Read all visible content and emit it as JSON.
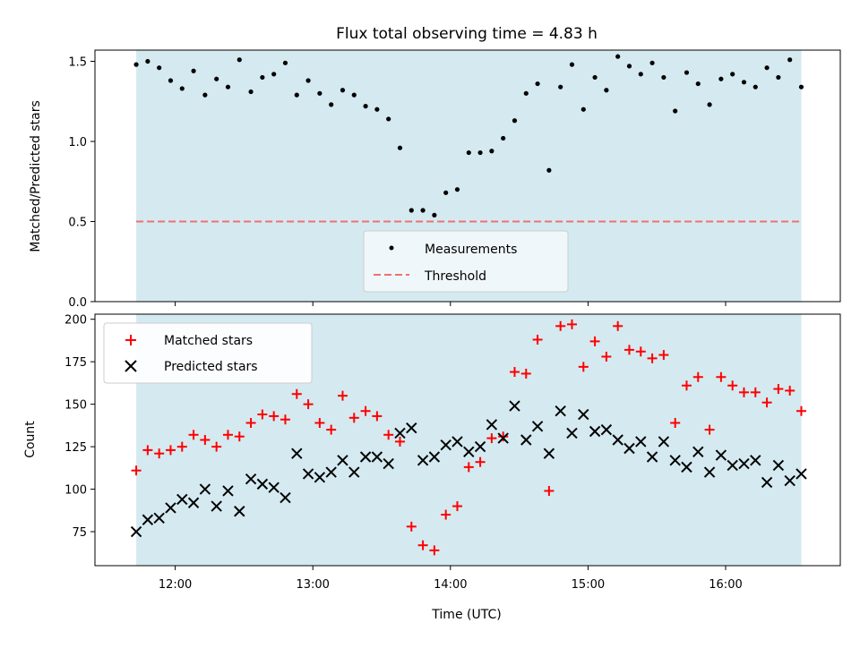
{
  "chart_data": [
    {
      "type": "scatter",
      "title": "Flux total observing time = 4.83 h",
      "xlabel": "",
      "ylabel": "Matched/Predicted stars",
      "ylim": [
        0,
        1.57
      ],
      "xlim": [
        "11:25",
        "16:50"
      ],
      "shaded_region": {
        "from": "11:43",
        "to": "16:33",
        "color": "#d4eaf0"
      },
      "yticks": [
        "0.0",
        "0.5",
        "1.0",
        "1.5"
      ],
      "legend": {
        "placement": "lower center",
        "entries": [
          "Measurements",
          "Threshold"
        ]
      },
      "series": [
        {
          "name": "Measurements",
          "color": "#000000",
          "x": [
            "11:43",
            "11:48",
            "11:53",
            "11:58",
            "12:03",
            "12:08",
            "12:13",
            "12:18",
            "12:23",
            "12:28",
            "12:33",
            "12:38",
            "12:43",
            "12:48",
            "12:53",
            "12:58",
            "13:03",
            "13:08",
            "13:13",
            "13:18",
            "13:23",
            "13:28",
            "13:33",
            "13:38",
            "13:43",
            "13:48",
            "13:53",
            "13:58",
            "14:03",
            "14:08",
            "14:13",
            "14:18",
            "14:23",
            "14:28",
            "14:33",
            "14:38",
            "14:43",
            "14:48",
            "14:53",
            "14:58",
            "15:03",
            "15:08",
            "15:13",
            "15:18",
            "15:23",
            "15:28",
            "15:33",
            "15:38",
            "15:43",
            "15:48",
            "15:53",
            "15:58",
            "16:03",
            "16:08",
            "16:13",
            "16:18",
            "16:23",
            "16:28",
            "16:33"
          ],
          "y": [
            1.48,
            1.5,
            1.46,
            1.38,
            1.33,
            1.44,
            1.29,
            1.39,
            1.34,
            1.51,
            1.31,
            1.4,
            1.42,
            1.49,
            1.29,
            1.38,
            1.3,
            1.23,
            1.32,
            1.29,
            1.22,
            1.2,
            1.14,
            0.96,
            0.57,
            0.57,
            0.54,
            0.68,
            0.7,
            0.93,
            0.93,
            0.94,
            1.02,
            1.13,
            1.3,
            1.36,
            0.82,
            1.34,
            1.48,
            1.2,
            1.4,
            1.32,
            1.53,
            1.47,
            1.42,
            1.49,
            1.4,
            1.19,
            1.43,
            1.36,
            1.23,
            1.39,
            1.42,
            1.37,
            1.34,
            1.46,
            1.4,
            1.51,
            1.34
          ]
        },
        {
          "name": "Threshold",
          "type": "line",
          "style": "dashed",
          "color": "#f07070",
          "x": [
            "11:43",
            "16:33"
          ],
          "y": [
            0.5,
            0.5
          ]
        }
      ]
    },
    {
      "type": "scatter",
      "title": "",
      "xlabel": "Time (UTC)",
      "ylabel": "Count",
      "ylim": [
        55,
        203
      ],
      "xlim": [
        "11:25",
        "16:50"
      ],
      "xticks": [
        "12:00",
        "13:00",
        "14:00",
        "15:00",
        "16:00"
      ],
      "yticks": [
        "75",
        "100",
        "125",
        "150",
        "175",
        "200"
      ],
      "shaded_region": {
        "from": "11:43",
        "to": "16:33",
        "color": "#d4eaf0"
      },
      "legend": {
        "placement": "upper left",
        "entries": [
          "Matched stars",
          "Predicted stars"
        ]
      },
      "series": [
        {
          "name": "Matched stars",
          "marker": "+",
          "color": "#ff0000",
          "x": [
            "11:43",
            "11:48",
            "11:53",
            "11:58",
            "12:03",
            "12:08",
            "12:13",
            "12:18",
            "12:23",
            "12:28",
            "12:33",
            "12:38",
            "12:43",
            "12:48",
            "12:53",
            "12:58",
            "13:03",
            "13:08",
            "13:13",
            "13:18",
            "13:23",
            "13:28",
            "13:33",
            "13:38",
            "13:43",
            "13:48",
            "13:53",
            "13:58",
            "14:03",
            "14:08",
            "14:13",
            "14:18",
            "14:23",
            "14:28",
            "14:33",
            "14:38",
            "14:43",
            "14:48",
            "14:53",
            "14:58",
            "15:03",
            "15:08",
            "15:13",
            "15:18",
            "15:23",
            "15:28",
            "15:33",
            "15:38",
            "15:43",
            "15:48",
            "15:53",
            "15:58",
            "16:03",
            "16:08",
            "16:13",
            "16:18",
            "16:23",
            "16:28",
            "16:33"
          ],
          "y": [
            111,
            123,
            121,
            123,
            125,
            132,
            129,
            125,
            132,
            131,
            139,
            144,
            143,
            141,
            156,
            150,
            139,
            135,
            155,
            142,
            146,
            143,
            132,
            128,
            78,
            67,
            64,
            85,
            90,
            113,
            116,
            130,
            131,
            169,
            168,
            188,
            99,
            196,
            197,
            172,
            187,
            178,
            196,
            182,
            181,
            177,
            179,
            139,
            161,
            166,
            135,
            166,
            161,
            157,
            157,
            151,
            159,
            158,
            146
          ]
        },
        {
          "name": "Predicted stars",
          "marker": "x",
          "color": "#000000",
          "x": [
            "11:43",
            "11:48",
            "11:53",
            "11:58",
            "12:03",
            "12:08",
            "12:13",
            "12:18",
            "12:23",
            "12:28",
            "12:33",
            "12:38",
            "12:43",
            "12:48",
            "12:53",
            "12:58",
            "13:03",
            "13:08",
            "13:13",
            "13:18",
            "13:23",
            "13:28",
            "13:33",
            "13:38",
            "13:43",
            "13:48",
            "13:53",
            "13:58",
            "14:03",
            "14:08",
            "14:13",
            "14:18",
            "14:23",
            "14:28",
            "14:33",
            "14:38",
            "14:43",
            "14:48",
            "14:53",
            "14:58",
            "15:03",
            "15:08",
            "15:13",
            "15:18",
            "15:23",
            "15:28",
            "15:33",
            "15:38",
            "15:43",
            "15:48",
            "15:53",
            "15:58",
            "16:03",
            "16:08",
            "16:13",
            "16:18",
            "16:23",
            "16:28",
            "16:33"
          ],
          "y": [
            75,
            82,
            83,
            89,
            94,
            92,
            100,
            90,
            99,
            87,
            106,
            103,
            101,
            95,
            121,
            109,
            107,
            110,
            117,
            110,
            119,
            119,
            115,
            133,
            136,
            117,
            119,
            126,
            128,
            122,
            125,
            138,
            130,
            149,
            129,
            137,
            121,
            146,
            133,
            144,
            134,
            135,
            129,
            124,
            128,
            119,
            128,
            117,
            113,
            122,
            110,
            120,
            114,
            115,
            117,
            104,
            114,
            105,
            109
          ]
        }
      ]
    }
  ]
}
